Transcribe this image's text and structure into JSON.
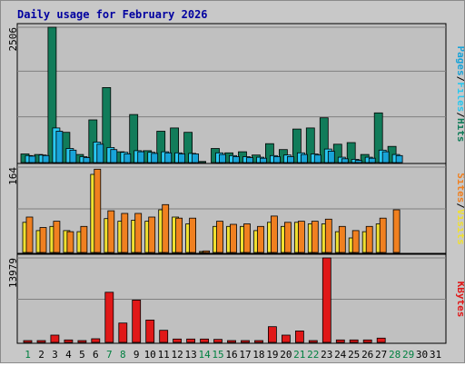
{
  "colors": {
    "background": "#c8c8c8",
    "plot_bg": "#c0c0c0",
    "hits": "#117c5a",
    "files": "#28c8f0",
    "pages": "#18a3d8",
    "visits": "#f0e030",
    "sites": "#f08020",
    "kbytes": "#e01818",
    "title": "#0000a0",
    "weekend_label": "#008040",
    "weekday_label": "#000000"
  },
  "chart_data": [
    {
      "type": "bar",
      "title": "Daily usage for February 2026",
      "x": [
        1,
        2,
        3,
        4,
        5,
        6,
        7,
        8,
        9,
        10,
        11,
        12,
        13,
        14,
        15,
        16,
        17,
        18,
        19,
        20,
        21,
        22,
        23,
        24,
        25,
        26,
        27,
        28,
        29,
        30,
        31
      ],
      "x_tick_labels": [
        "1",
        "2",
        "3",
        "4",
        "5",
        "6",
        "7",
        "8",
        "9",
        "10",
        "11",
        "12",
        "13",
        "14",
        "15",
        "16",
        "17",
        "18",
        "19",
        "20",
        "21",
        "22",
        "23",
        "24",
        "25",
        "26",
        "27",
        "28",
        "29",
        "30",
        "31"
      ],
      "weekend_days": [
        1,
        7,
        8,
        14,
        15,
        21,
        22,
        28,
        29
      ],
      "ylabel_max": "2506",
      "ylim": [
        0,
        2506
      ],
      "legend": [
        "Pages",
        "Files",
        "Hits"
      ],
      "series": [
        {
          "name": "Hits",
          "values": [
            160,
            150,
            2506,
            560,
            150,
            790,
            1390,
            200,
            890,
            220,
            580,
            640,
            560,
            20,
            260,
            180,
            200,
            140,
            350,
            240,
            620,
            640,
            830,
            340,
            370,
            150,
            920,
            300,
            0,
            0,
            0
          ]
        },
        {
          "name": "Files",
          "values": [
            130,
            140,
            640,
            260,
            110,
            380,
            280,
            190,
            220,
            190,
            200,
            180,
            170,
            0,
            180,
            130,
            110,
            100,
            130,
            140,
            180,
            160,
            250,
            100,
            60,
            100,
            230,
            150,
            0,
            0,
            0
          ]
        },
        {
          "name": "Pages",
          "values": [
            120,
            130,
            580,
            230,
            90,
            340,
            240,
            160,
            200,
            170,
            180,
            160,
            160,
            0,
            150,
            110,
            90,
            80,
            110,
            110,
            150,
            140,
            210,
            70,
            40,
            80,
            200,
            130,
            0,
            0,
            0
          ]
        }
      ]
    },
    {
      "type": "bar",
      "ylabel_max": "164",
      "ylim": [
        0,
        164
      ],
      "legend": [
        "Sites",
        "Visits"
      ],
      "series": [
        {
          "name": "Visits",
          "values": [
            58,
            42,
            50,
            42,
            40,
            150,
            65,
            60,
            62,
            60,
            82,
            68,
            55,
            2,
            50,
            50,
            50,
            42,
            58,
            50,
            58,
            55,
            55,
            40,
            28,
            40,
            55,
            0,
            0,
            0,
            0
          ]
        },
        {
          "name": "Sites",
          "values": [
            68,
            48,
            60,
            40,
            50,
            160,
            80,
            75,
            75,
            68,
            92,
            66,
            66,
            3,
            60,
            54,
            55,
            50,
            70,
            58,
            60,
            60,
            64,
            50,
            42,
            50,
            66,
            82,
            0,
            0,
            0
          ]
        }
      ]
    },
    {
      "type": "bar",
      "ylabel_max": "13979",
      "ylim": [
        0,
        13979
      ],
      "legend": [
        "KBytes"
      ],
      "series": [
        {
          "name": "KBytes",
          "values": [
            300,
            300,
            1200,
            400,
            300,
            600,
            8300,
            3200,
            7000,
            3700,
            2000,
            550,
            550,
            550,
            500,
            300,
            300,
            300,
            2600,
            1200,
            1900,
            300,
            13979,
            400,
            400,
            400,
            700,
            0,
            0,
            0,
            0
          ]
        }
      ]
    }
  ]
}
